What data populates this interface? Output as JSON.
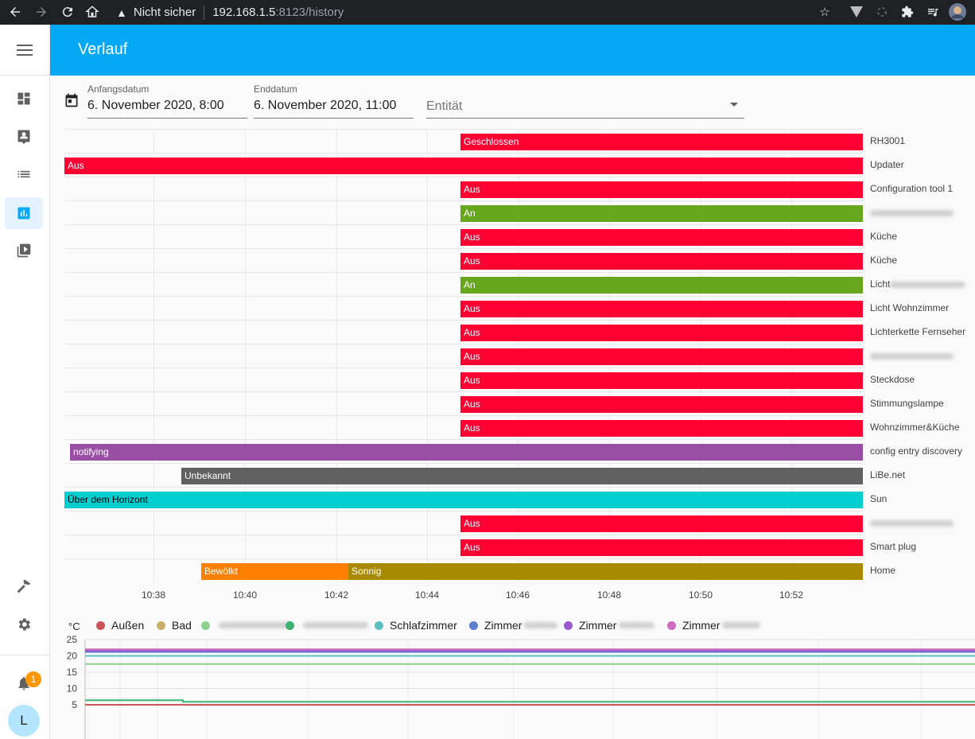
{
  "browser": {
    "warning": "Nicht sicher",
    "url_host": "192.168.1.5",
    "url_path": ":8123/history"
  },
  "header": {
    "title": "Verlauf"
  },
  "sidebar": {
    "items": [
      "dashboard-icon",
      "map-icon",
      "logbook-icon",
      "history-icon",
      "media-icon"
    ],
    "active": "history-icon",
    "notification_count": "1",
    "user_initial": "L"
  },
  "filters": {
    "start_label": "Anfangsdatum",
    "start_value": "6. November 2020, 8:00",
    "end_label": "Enddatum",
    "end_value": "6. November 2020, 11:00",
    "entity_placeholder": "Entität"
  },
  "colors": {
    "off": "#ff0033",
    "on": "#67a71d",
    "notifying": "#984ea3",
    "unknown": "#616161",
    "sun": "#00ced1",
    "cloudy": "#ff7f00",
    "sunny": "#a88900",
    "accent": "#03a9f4"
  },
  "timeline": {
    "ticks": [
      "10:38",
      "10:40",
      "10:42",
      "10:44",
      "10:46",
      "10:48",
      "10:50",
      "10:52"
    ],
    "rows": [
      {
        "label": "RH3001",
        "segments": [
          {
            "text": "Geschlossen",
            "start": 0.496,
            "end": 1.0,
            "color": "off"
          }
        ]
      },
      {
        "label": "Updater",
        "segments": [
          {
            "text": "Aus",
            "start": 0.0,
            "end": 1.0,
            "color": "off"
          }
        ]
      },
      {
        "label": "Configuration tool 1",
        "segments": [
          {
            "text": "Aus",
            "start": 0.496,
            "end": 1.0,
            "color": "off"
          }
        ]
      },
      {
        "label": "",
        "blurred": true,
        "segments": [
          {
            "text": "An",
            "start": 0.496,
            "end": 1.0,
            "color": "on"
          }
        ]
      },
      {
        "label": "Küche",
        "segments": [
          {
            "text": "Aus",
            "start": 0.496,
            "end": 1.0,
            "color": "off"
          }
        ]
      },
      {
        "label": "Küche",
        "segments": [
          {
            "text": "Aus",
            "start": 0.496,
            "end": 1.0,
            "color": "off"
          }
        ]
      },
      {
        "label": "Licht",
        "blurred": true,
        "segments": [
          {
            "text": "An",
            "start": 0.496,
            "end": 1.0,
            "color": "on"
          }
        ]
      },
      {
        "label": "Licht Wohnzimmer",
        "segments": [
          {
            "text": "Aus",
            "start": 0.496,
            "end": 1.0,
            "color": "off"
          }
        ]
      },
      {
        "label": "Lichterkette Fernseher",
        "segments": [
          {
            "text": "Aus",
            "start": 0.496,
            "end": 1.0,
            "color": "off"
          }
        ]
      },
      {
        "label": "",
        "blurred": true,
        "segments": [
          {
            "text": "Aus",
            "start": 0.496,
            "end": 1.0,
            "color": "off"
          }
        ]
      },
      {
        "label": "Steckdose",
        "segments": [
          {
            "text": "Aus",
            "start": 0.496,
            "end": 1.0,
            "color": "off"
          }
        ]
      },
      {
        "label": "Stimmungslampe",
        "segments": [
          {
            "text": "Aus",
            "start": 0.496,
            "end": 1.0,
            "color": "off"
          }
        ]
      },
      {
        "label": "Wohnzimmer&Küche",
        "segments": [
          {
            "text": "Aus",
            "start": 0.496,
            "end": 1.0,
            "color": "off"
          }
        ]
      },
      {
        "label": "config entry discovery",
        "segments": [
          {
            "text": "notifying",
            "start": 0.007,
            "end": 1.0,
            "color": "notifying"
          }
        ]
      },
      {
        "label": "LiBe.net",
        "segments": [
          {
            "text": "Unbekannt",
            "start": 0.146,
            "end": 1.0,
            "color": "unknown"
          }
        ]
      },
      {
        "label": "Sun",
        "segments": [
          {
            "text": "Über dem Horizont",
            "start": 0.0,
            "end": 1.0,
            "color": "sun"
          }
        ]
      },
      {
        "label": "",
        "blurred": true,
        "segments": [
          {
            "text": "Aus",
            "start": 0.496,
            "end": 1.0,
            "color": "off"
          }
        ]
      },
      {
        "label": "Smart plug",
        "segments": [
          {
            "text": "Aus",
            "start": 0.496,
            "end": 1.0,
            "color": "off"
          }
        ]
      },
      {
        "label": "Home",
        "segments": [
          {
            "text": "Bewölkt",
            "start": 0.171,
            "end": 0.356,
            "color": "cloudy"
          },
          {
            "text": "Sonnig",
            "start": 0.356,
            "end": 1.0,
            "color": "sunny"
          }
        ]
      }
    ]
  },
  "chart_data": {
    "type": "line",
    "ylabel": "°C",
    "yticks": [
      "25",
      "20",
      "15",
      "10",
      "5"
    ],
    "ylim": [
      5,
      25
    ],
    "series": [
      {
        "name": "Außen",
        "color": "#cc5555",
        "values": [
          5.0,
          5.0
        ]
      },
      {
        "name": "Bad",
        "color": "#c9b06b",
        "values": [
          21.8,
          21.8
        ]
      },
      {
        "name": "",
        "blurred": true,
        "color": "#8fd18f",
        "values": [
          17.5,
          17.5
        ]
      },
      {
        "name": "",
        "blurred": true,
        "color": "#3cb371",
        "values": [
          6.4,
          5.9
        ]
      },
      {
        "name": "Schlafzimmer",
        "color": "#5bc0c0",
        "values": [
          20.0,
          20.0
        ]
      },
      {
        "name": "Zimmer",
        "blurred": true,
        "color": "#5f7fcf",
        "values": [
          21.2,
          21.2
        ]
      },
      {
        "name": "Zimmer",
        "blurred": true,
        "color": "#9b59d0",
        "values": [
          21.6,
          21.6
        ]
      },
      {
        "name": "Zimmer",
        "blurred": true,
        "color": "#d06ac0",
        "values": [
          22.0,
          22.0
        ]
      }
    ]
  }
}
